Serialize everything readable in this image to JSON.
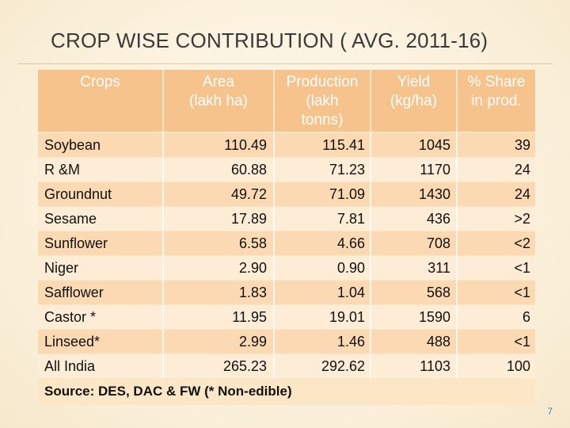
{
  "title": "CROP WISE CONTRIBUTION ( AVG. 2011-16)",
  "columns": {
    "crops": "Crops",
    "area": "Area\n(lakh ha)",
    "production": "Production\n(lakh\ntonns)",
    "yield": "Yield\n(kg/ha)",
    "share": "% Share\nin prod."
  },
  "rows": [
    {
      "crop": "Soybean",
      "area": "110.49",
      "production": "115.41",
      "yield": "1045",
      "share": "39"
    },
    {
      "crop": "R &M",
      "area": "60.88",
      "production": "71.23",
      "yield": "1170",
      "share": "24"
    },
    {
      "crop": "Groundnut",
      "area": "49.72",
      "production": "71.09",
      "yield": "1430",
      "share": "24"
    },
    {
      "crop": "Sesame",
      "area": "17.89",
      "production": "7.81",
      "yield": "436",
      "share": ">2"
    },
    {
      "crop": "Sunflower",
      "area": "6.58",
      "production": "4.66",
      "yield": "708",
      "share": "<2"
    },
    {
      "crop": "Niger",
      "area": "2.90",
      "production": "0.90",
      "yield": "311",
      "share": "<1"
    },
    {
      "crop": "Safflower",
      "area": "1.83",
      "production": "1.04",
      "yield": "568",
      "share": "<1"
    },
    {
      "crop": "Castor *",
      "area": "11.95",
      "production": "19.01",
      "yield": "1590",
      "share": "6"
    },
    {
      "crop": "Linseed*",
      "area": "2.99",
      "production": "1.46",
      "yield": "488",
      "share": "<1"
    },
    {
      "crop": "All India",
      "area": "265.23",
      "production": "292.62",
      "yield": "1103",
      "share": "100"
    }
  ],
  "source": "Source: DES, DAC & FW (* Non-edible)",
  "page_number": "7"
}
